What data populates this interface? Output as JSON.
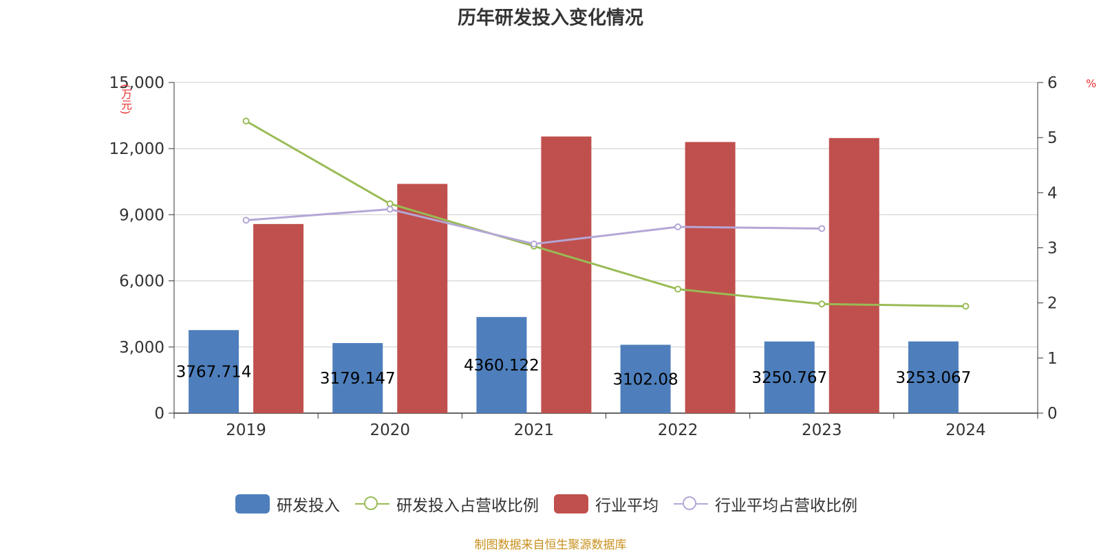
{
  "chart_data": {
    "type": "bar",
    "title": "历年研发投入变化情况",
    "categories": [
      "2019",
      "2020",
      "2021",
      "2022",
      "2023",
      "2024"
    ],
    "y_left": {
      "unit_label": "(万元)",
      "ylim": [
        0,
        15000
      ],
      "ticks": [
        "0",
        "3,000",
        "6,000",
        "9,000",
        "12,000",
        "15,000"
      ]
    },
    "y_right": {
      "unit_label": "%",
      "ylim": [
        0,
        6
      ],
      "ticks": [
        "0",
        "1",
        "2",
        "3",
        "4",
        "5",
        "6"
      ]
    },
    "series": [
      {
        "name": "研发投入",
        "type": "bar",
        "axis": "left",
        "color": "#4e7fbc",
        "values": [
          3767.714,
          3179.147,
          4360.122,
          3102.08,
          3250.767,
          3253.067
        ],
        "labels": [
          "3767.714",
          "3179.147",
          "4360.122",
          "3102.08",
          "3250.767",
          "3253.067"
        ]
      },
      {
        "name": "研发投入占营收比例",
        "type": "line",
        "axis": "right",
        "color": "#99bb55",
        "values": [
          5.3,
          3.8,
          3.03,
          2.25,
          1.98,
          1.94
        ]
      },
      {
        "name": "行业平均",
        "type": "bar",
        "axis": "left",
        "color": "#c0504d",
        "values": [
          8580,
          10400,
          12550,
          12300,
          12480,
          null
        ]
      },
      {
        "name": "行业平均占营收比例",
        "type": "line",
        "axis": "right",
        "color": "#b4a7d6",
        "values": [
          3.5,
          3.7,
          3.07,
          3.38,
          3.35,
          null
        ]
      }
    ],
    "grid": true,
    "legend_position": "bottom"
  },
  "source": "制图数据来自恒生聚源数据库"
}
